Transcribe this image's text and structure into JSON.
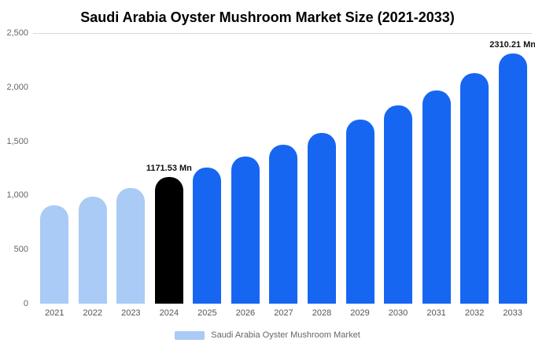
{
  "page": {
    "background": "#ffffff"
  },
  "chart_data": {
    "type": "bar",
    "title": "Saudi Arabia Oyster Mushroom Market Size (2021-2033)",
    "categories": [
      "2021",
      "2022",
      "2023",
      "2024",
      "2025",
      "2026",
      "2027",
      "2028",
      "2029",
      "2030",
      "2031",
      "2032",
      "2033"
    ],
    "values": [
      910,
      990,
      1070,
      1171.53,
      1260,
      1360,
      1465,
      1580,
      1700,
      1830,
      1970,
      2130,
      2310.21
    ],
    "unit": "Mn",
    "bar_styles": [
      "light",
      "light",
      "light",
      "highlight",
      "primary",
      "primary",
      "primary",
      "primary",
      "primary",
      "primary",
      "primary",
      "primary",
      "primary"
    ],
    "annotations": [
      {
        "index": 3,
        "text": "1171.53 Mn"
      },
      {
        "index": 12,
        "text": "2310.21 Mn"
      }
    ],
    "ylim": [
      0,
      2500
    ],
    "yticks": [
      0,
      500,
      1000,
      1500,
      2000,
      2500
    ],
    "ytick_labels": [
      "0",
      "500",
      "1,000",
      "1,500",
      "2,000",
      "2,500"
    ],
    "colors": {
      "light": "#a9cbf5",
      "highlight": "#000000",
      "primary": "#1766f2"
    },
    "legend_label": "Saudi Arabia Oyster Mushroom Market",
    "legend_swatch_style": "light",
    "grid": "top-line-only",
    "legend_position": "bottom-center"
  }
}
